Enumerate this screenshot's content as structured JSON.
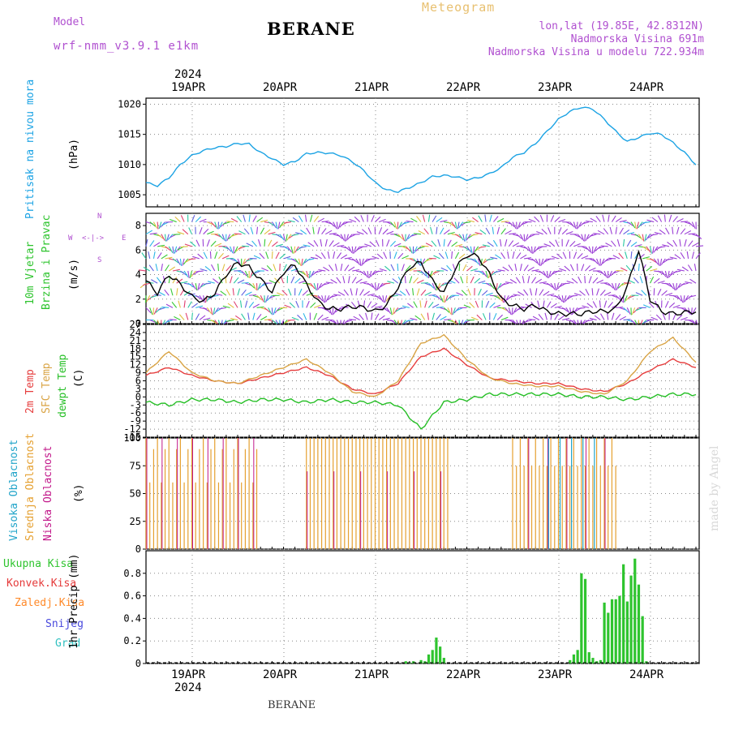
{
  "header": {
    "model_label": "Model",
    "model_name": "wrf-nmm_v3.9.1 e1km",
    "title": "BERANE",
    "meteogram_label": "Meteogram",
    "lonlat": "lon,lat (19.85E, 42.8312N)",
    "elevation": "Nadmorska Visina 691m",
    "model_elevation": "Nadmorska Visina u modelu 722.934m",
    "year": "2024",
    "footer_title": "BERANE",
    "watermark": "made by Angel"
  },
  "colors": {
    "pressure": "#1ca3e4",
    "t2m": "#e63d3d",
    "sfc": "#d9a445",
    "dewpt": "#26bf26",
    "low_cloud": "#c2188a",
    "mid_cloud": "#e5a030",
    "high_cloud": "#20a4c9",
    "total_precip": "#2ec42e",
    "conv_precip": "#e53a3a",
    "frozen_precip": "#ff8a2a",
    "snow": "#4848dd",
    "hail": "#30c0c0",
    "purple_text": "#b050d0"
  },
  "dates": [
    "19APR",
    "20APR",
    "21APR",
    "22APR",
    "23APR",
    "24APR"
  ],
  "panels": {
    "pressure": {
      "label": "Pritisak na nivou mora",
      "unit": "(hPa)"
    },
    "wind": {
      "label1": "10m Vjetar",
      "label2": "Brzina i Pravac",
      "unit": "(m/s)",
      "compass_n": "N",
      "compass_s": "S",
      "compass_w": "W",
      "compass_e": "E",
      "compass_arrows": "<-|->"
    },
    "temp": {
      "label1": "2m Temp",
      "label2": "SFC Temp",
      "label3": "dewpt Temp",
      "unit": "(C)"
    },
    "cloud": {
      "label1": "Visoka Oblacnost",
      "label2": "Srednja Oblacnost",
      "label3": "Niska Oblacnost",
      "unit": "(%)"
    },
    "precip": {
      "label1": "Ukupna Kisa",
      "label2": "Konvek.Kisa",
      "label3": "Zaledj.Kisa",
      "label4": "Snijeg",
      "label5": "Grad",
      "unit": "1hr Precip (mm)"
    }
  },
  "chart_data": [
    {
      "type": "line",
      "name": "pressure",
      "ylim": [
        1003,
        1021
      ],
      "yticks": [
        1005,
        1010,
        1015,
        1020
      ],
      "x": [
        0,
        3,
        6,
        9,
        12,
        15,
        18,
        21,
        24,
        27,
        30,
        33,
        36,
        39,
        42,
        45,
        48,
        51,
        54,
        57,
        60,
        63,
        66,
        69,
        72,
        75,
        78,
        81,
        84,
        87,
        90,
        93,
        96,
        99,
        102,
        105,
        108,
        111,
        114,
        117,
        120,
        123,
        126,
        129,
        132,
        135,
        138,
        141,
        144
      ],
      "values": [
        1007,
        1006.5,
        1007.8,
        1010,
        1011.5,
        1012.3,
        1012.8,
        1013,
        1013.5,
        1013.4,
        1012,
        1011,
        1010,
        1010.5,
        1011.8,
        1012,
        1011.9,
        1011.5,
        1010.5,
        1009,
        1007,
        1005.8,
        1005.5,
        1006.2,
        1007,
        1008,
        1008.2,
        1008,
        1007.5,
        1007.8,
        1008.5,
        1009.5,
        1011.2,
        1012,
        1013.5,
        1015.5,
        1017.5,
        1018.8,
        1019.5,
        1019.2,
        1017.5,
        1015.5,
        1013.8,
        1014.5,
        1015.2,
        1015,
        1013.6,
        1012,
        1010
      ]
    },
    {
      "type": "line",
      "name": "wind_speed",
      "ylim": [
        0,
        9
      ],
      "yticks": [
        0,
        2,
        4,
        6,
        8
      ],
      "x": [
        0,
        3,
        6,
        9,
        12,
        15,
        18,
        21,
        24,
        27,
        30,
        33,
        36,
        39,
        42,
        45,
        48,
        51,
        54,
        57,
        60,
        63,
        66,
        69,
        72,
        75,
        78,
        81,
        84,
        87,
        90,
        93,
        96,
        99,
        102,
        105,
        108,
        111,
        114,
        117,
        120,
        123,
        126,
        129,
        132,
        135,
        138,
        141,
        144
      ],
      "values": [
        3.5,
        2.5,
        4,
        3.2,
        2.2,
        1.8,
        2.5,
        4,
        5,
        4.6,
        3.6,
        2.6,
        4.2,
        4.8,
        3.2,
        1.8,
        1.2,
        1.2,
        1.4,
        1.3,
        1,
        1.5,
        3,
        4.6,
        5,
        3.5,
        2.5,
        4.5,
        5.6,
        5.5,
        4,
        2,
        1.5,
        1.2,
        1.5,
        1,
        0.8,
        0.8,
        0.8,
        1,
        1,
        1.2,
        3,
        6,
        2,
        1,
        0.8,
        0.9,
        1
      ]
    },
    {
      "type": "line",
      "name": "temperature",
      "ylim": [
        -15,
        27
      ],
      "yticks": [
        -15,
        -12,
        -9,
        -6,
        -3,
        0,
        3,
        6,
        9,
        12,
        15,
        18,
        21,
        24,
        27
      ],
      "series": [
        {
          "name": "2m Temp",
          "x": [
            0,
            6,
            12,
            18,
            24,
            30,
            36,
            42,
            48,
            54,
            60,
            66,
            72,
            78,
            84,
            90,
            96,
            102,
            108,
            114,
            120,
            126,
            132,
            138,
            144
          ],
          "values": [
            8,
            11,
            8,
            6,
            5,
            7,
            9,
            11,
            8,
            3,
            1,
            5,
            15,
            18,
            12,
            7,
            6,
            5,
            5,
            3,
            2,
            5,
            10,
            14,
            11
          ]
        },
        {
          "name": "SFC Temp",
          "x": [
            0,
            6,
            12,
            18,
            24,
            30,
            36,
            42,
            48,
            54,
            60,
            66,
            72,
            78,
            84,
            90,
            96,
            102,
            108,
            114,
            120,
            126,
            132,
            138,
            144
          ],
          "values": [
            9,
            17,
            9,
            6,
            5,
            8,
            11,
            14,
            9,
            2,
            0,
            6,
            20,
            23,
            14,
            7,
            5,
            4,
            4,
            2,
            1,
            6,
            17,
            22,
            13
          ]
        },
        {
          "name": "dewpt Temp",
          "x": [
            0,
            6,
            12,
            18,
            24,
            30,
            36,
            42,
            48,
            54,
            60,
            66,
            72,
            78,
            84,
            90,
            96,
            102,
            108,
            114,
            120,
            126,
            132,
            138,
            144
          ],
          "values": [
            -2,
            -3,
            -1,
            -1,
            -2,
            -1,
            -1,
            -2,
            -1,
            -2,
            -2,
            -3,
            -12,
            -2,
            -1,
            1,
            1,
            1,
            1,
            0,
            0,
            -1,
            0,
            1,
            1
          ]
        }
      ]
    },
    {
      "type": "bar",
      "name": "cloud_cover",
      "ylim": [
        0,
        100
      ],
      "yticks": [
        0,
        25,
        50,
        75,
        100
      ],
      "series": [
        {
          "name": "Visoka Oblacnost"
        },
        {
          "name": "Srednja Oblacnost"
        },
        {
          "name": "Niska Oblacnost"
        }
      ]
    },
    {
      "type": "bar",
      "name": "precipitation",
      "ylim": [
        0,
        1
      ],
      "yticks": [
        0,
        0.2,
        0.4,
        0.6,
        0.8
      ],
      "x": [
        68,
        69,
        70,
        72,
        73,
        74,
        75,
        76,
        77,
        78,
        111,
        112,
        113,
        114,
        115,
        116,
        117,
        118,
        119,
        120,
        121,
        122,
        123,
        124,
        125,
        126,
        127,
        128,
        129,
        130,
        131
      ],
      "values": [
        0.02,
        0.01,
        0.02,
        0.03,
        0.02,
        0.08,
        0.12,
        0.23,
        0.15,
        0.05,
        0.03,
        0.08,
        0.12,
        0.8,
        0.75,
        0.1,
        0.05,
        0.02,
        0.03,
        0.54,
        0.45,
        0.57,
        0.57,
        0.6,
        0.88,
        0.55,
        0.78,
        0.93,
        0.7,
        0.42,
        0.02
      ]
    }
  ]
}
